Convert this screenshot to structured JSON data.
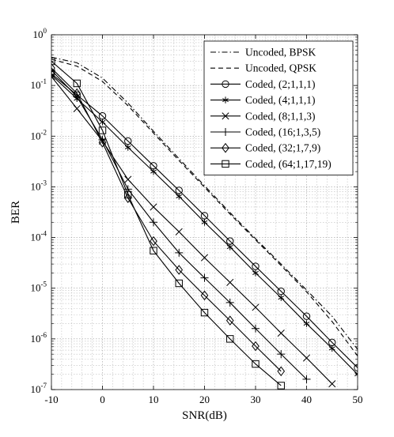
{
  "chart_data": {
    "type": "line",
    "title": "",
    "xlabel": "SNR(dB)",
    "ylabel": "BER",
    "x_scale": "linear",
    "y_scale": "log",
    "xlim": [
      -10,
      50
    ],
    "ylim": [
      1e-07,
      1
    ],
    "grid": true,
    "minor_grid": true,
    "legend_position": "top-right",
    "x_ticks": [
      "-10",
      "0",
      "10",
      "20",
      "30",
      "40",
      "50"
    ],
    "y_ticks": [
      {
        "base": "10",
        "exp": "0"
      },
      {
        "base": "10",
        "exp": "-1"
      },
      {
        "base": "10",
        "exp": "-2"
      },
      {
        "base": "10",
        "exp": "-3"
      },
      {
        "base": "10",
        "exp": "-4"
      },
      {
        "base": "10",
        "exp": "-5"
      },
      {
        "base": "10",
        "exp": "-6"
      },
      {
        "base": "10",
        "exp": "-7"
      }
    ],
    "series": [
      {
        "name": "Uncoded, BPSK",
        "line_style": "dashdot",
        "marker": "none",
        "x": [
          -10,
          -5,
          0,
          5,
          10,
          15,
          20,
          25,
          30,
          35,
          40,
          45,
          50
        ],
        "y": [
          0.36,
          0.28,
          0.14,
          0.045,
          0.0125,
          0.0036,
          0.00105,
          0.00031,
          9.5e-05,
          3e-05,
          9.2e-06,
          2.8e-06,
          6.2e-07
        ]
      },
      {
        "name": "Uncoded, QPSK",
        "line_style": "dashed",
        "marker": "none",
        "x": [
          -10,
          -5,
          0,
          5,
          10,
          15,
          20,
          25,
          30,
          35,
          40,
          45,
          50
        ],
        "y": [
          0.33,
          0.24,
          0.12,
          0.04,
          0.0115,
          0.0033,
          0.00098,
          0.00029,
          9e-05,
          2.8e-05,
          8.5e-06,
          2.2e-06,
          4.6e-07
        ]
      },
      {
        "name": "Coded, (2;1,1,1)",
        "line_style": "solid",
        "marker": "circle",
        "x": [
          -10,
          -5,
          0,
          5,
          10,
          15,
          20,
          25,
          30,
          35,
          40,
          45,
          50
        ],
        "y": [
          0.17,
          0.065,
          0.025,
          0.008,
          0.0026,
          0.00085,
          0.00027,
          8.5e-05,
          2.7e-05,
          8.7e-06,
          2.8e-06,
          8.5e-07,
          2.7e-07
        ]
      },
      {
        "name": "Coded, (4;1,1,1)",
        "line_style": "solid",
        "marker": "asterisk",
        "x": [
          -10,
          -5,
          0,
          5,
          10,
          15,
          20,
          25,
          30,
          35,
          40,
          45,
          50
        ],
        "y": [
          0.16,
          0.055,
          0.019,
          0.006,
          0.002,
          0.00065,
          0.0002,
          6.5e-05,
          2e-05,
          6.5e-06,
          2e-06,
          6.5e-07,
          2e-07
        ]
      },
      {
        "name": "Coded, (8;1,1,3)",
        "line_style": "solid",
        "marker": "x",
        "x": [
          -10,
          -5,
          0,
          5,
          10,
          15,
          20,
          25,
          30,
          35,
          40,
          45
        ],
        "y": [
          0.15,
          0.035,
          0.008,
          0.0014,
          0.0004,
          0.00013,
          4e-05,
          1.3e-05,
          4.2e-06,
          1.3e-06,
          4.2e-07,
          1.3e-07
        ]
      },
      {
        "name": "Coded, (16;1,3,5)",
        "line_style": "solid",
        "marker": "plus",
        "x": [
          -10,
          -5,
          0,
          5,
          10,
          15,
          20,
          25,
          30,
          35,
          40
        ],
        "y": [
          0.2,
          0.06,
          0.0085,
          0.0009,
          0.0002,
          5e-05,
          1.6e-05,
          5.2e-06,
          1.6e-06,
          5e-07,
          1.6e-07
        ]
      },
      {
        "name": "Coded, (32;1,7,9)",
        "line_style": "solid",
        "marker": "diamond",
        "x": [
          -10,
          -5,
          0,
          5,
          10,
          15,
          20,
          25,
          30,
          35
        ],
        "y": [
          0.22,
          0.07,
          0.0075,
          0.0006,
          8.5e-05,
          2.3e-05,
          7.2e-06,
          2.3e-06,
          7.2e-07,
          2.3e-07
        ]
      },
      {
        "name": "Coded, (64;1,17,19)",
        "line_style": "solid",
        "marker": "square",
        "x": [
          -10,
          -5,
          0,
          5,
          10,
          15,
          20,
          25,
          30,
          35
        ],
        "y": [
          0.3,
          0.11,
          0.013,
          0.0007,
          5.5e-05,
          1.25e-05,
          3.3e-06,
          1e-06,
          3.2e-07,
          1.2e-07
        ]
      }
    ]
  }
}
